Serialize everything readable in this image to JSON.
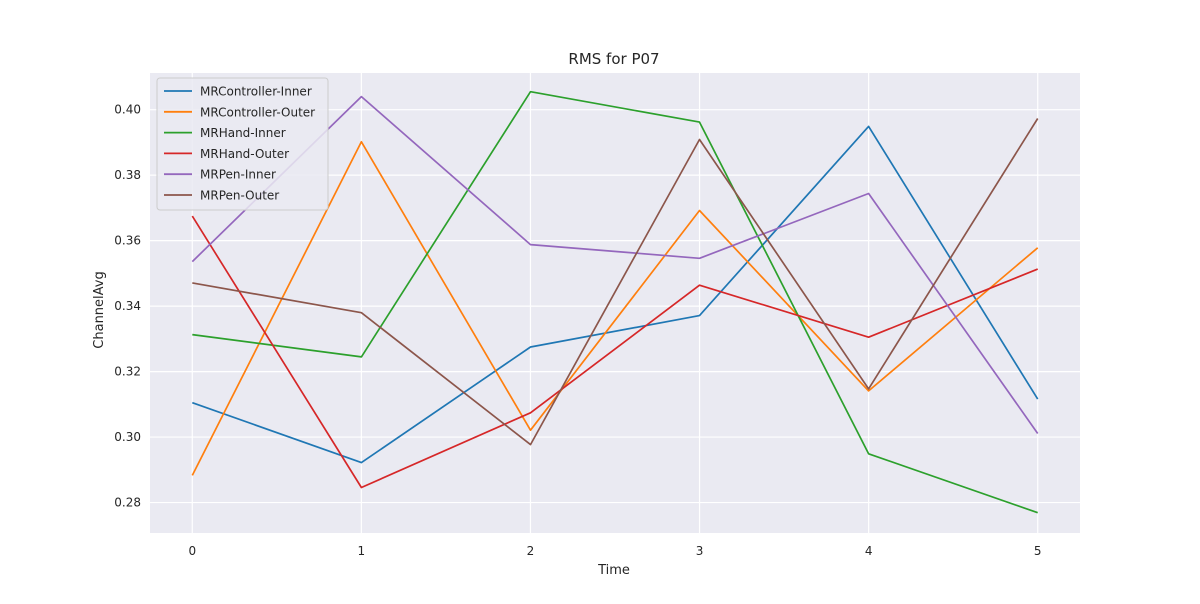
{
  "chart_data": {
    "type": "line",
    "title": "RMS for P07",
    "xlabel": "Time",
    "ylabel": "ChannelAvg",
    "x": [
      0,
      1,
      2,
      3,
      4,
      5
    ],
    "xticks": [
      "0",
      "1",
      "2",
      "3",
      "4",
      "5"
    ],
    "yticks": [
      "0.28",
      "0.30",
      "0.32",
      "0.34",
      "0.36",
      "0.38",
      "0.40"
    ],
    "xlim": [
      -0.25,
      5.25
    ],
    "ylim": [
      0.2707,
      0.4112
    ],
    "grid": true,
    "legend_position": "top-left",
    "background": "#eaeaf2",
    "series": [
      {
        "name": "MRController-Inner",
        "color": "#1f77b4",
        "values": [
          0.3105,
          0.2922,
          0.3275,
          0.3371,
          0.3949,
          0.3116
        ]
      },
      {
        "name": "MRController-Outer",
        "color": "#ff7f0e",
        "values": [
          0.2883,
          0.3902,
          0.3021,
          0.3692,
          0.3141,
          0.3578
        ]
      },
      {
        "name": "MRHand-Inner",
        "color": "#2ca02c",
        "values": [
          0.3313,
          0.3245,
          0.4055,
          0.3962,
          0.2949,
          0.2769
        ]
      },
      {
        "name": "MRHand-Outer",
        "color": "#d62728",
        "values": [
          0.3675,
          0.2846,
          0.3074,
          0.3464,
          0.3305,
          0.3513
        ]
      },
      {
        "name": "MRPen-Inner",
        "color": "#9467bd",
        "values": [
          0.3536,
          0.404,
          0.3588,
          0.3546,
          0.3744,
          0.3011
        ]
      },
      {
        "name": "MRPen-Outer",
        "color": "#8c564b",
        "values": [
          0.3471,
          0.338,
          0.2977,
          0.3909,
          0.3147,
          0.3973
        ]
      }
    ]
  }
}
